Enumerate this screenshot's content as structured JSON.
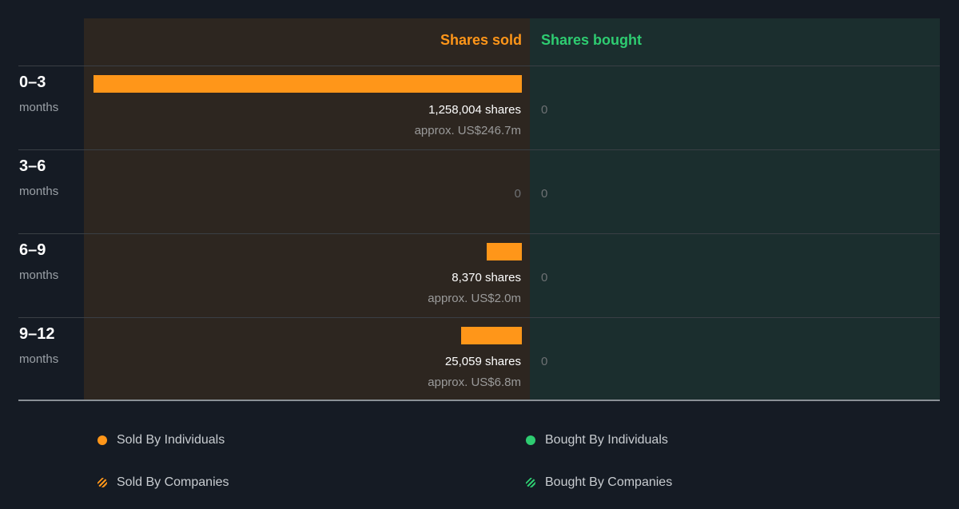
{
  "chart_data": {
    "type": "bar",
    "title": "",
    "columns": {
      "sold": "Shares sold",
      "bought": "Shares bought"
    },
    "rows": [
      {
        "range": "0–3",
        "unit": "months",
        "sold_shares": 1258004,
        "sold_label": "1,258,004 shares",
        "sold_value": "approx. US$246.7m",
        "bought_shares": 0,
        "bought_label": "0"
      },
      {
        "range": "3–6",
        "unit": "months",
        "sold_shares": 0,
        "sold_label": "0",
        "sold_value": "",
        "bought_shares": 0,
        "bought_label": "0"
      },
      {
        "range": "6–9",
        "unit": "months",
        "sold_shares": 8370,
        "sold_label": "8,370 shares",
        "sold_value": "approx. US$2.0m",
        "bought_shares": 0,
        "bought_label": "0"
      },
      {
        "range": "9–12",
        "unit": "months",
        "sold_shares": 25059,
        "sold_label": "25,059 shares",
        "sold_value": "approx. US$6.8m",
        "bought_shares": 0,
        "bought_label": "0"
      }
    ],
    "legend": [
      {
        "label": "Sold By Individuals",
        "style": "solid",
        "color": "#ff9619"
      },
      {
        "label": "Bought By Individuals",
        "style": "solid",
        "color": "#2ecc71"
      },
      {
        "label": "Sold By Companies",
        "style": "hatched",
        "color": "#ff9619"
      },
      {
        "label": "Bought By Companies",
        "style": "hatched",
        "color": "#2ecc71"
      }
    ],
    "colors": {
      "sold": "#ff9619",
      "bought": "#2ecc71",
      "sold_panel": "#2d2620",
      "bought_panel": "#1b2e2e"
    }
  }
}
